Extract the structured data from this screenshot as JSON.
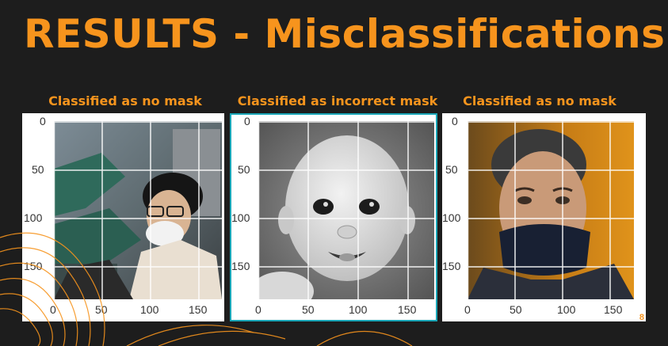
{
  "slide": {
    "title": "RESULTS - Misclassifications",
    "page_number": "8"
  },
  "colors": {
    "background": "#1d1d1d",
    "accent": "#f7941d",
    "selection": "#1aa6b7"
  },
  "panels": [
    {
      "caption": "Classified as no mask",
      "y_ticks": [
        "0",
        "50",
        "100",
        "150"
      ],
      "x_ticks": [
        "0",
        "50",
        "100",
        "150"
      ],
      "image": "photo of a boy in glasses wearing a white face mask"
    },
    {
      "caption": "Classified as incorrect mask",
      "y_ticks": [
        "0",
        "50",
        "100",
        "150"
      ],
      "x_ticks": [
        "0",
        "50",
        "100",
        "150"
      ],
      "image": "black and white photo of a smiling baby",
      "selected": true
    },
    {
      "caption": "Classified as no mask",
      "y_ticks": [
        "0",
        "50",
        "100",
        "150"
      ],
      "x_ticks": [
        "0",
        "50",
        "100",
        "150"
      ],
      "image": "photo of a man with a dark mask pulled below his nose"
    }
  ]
}
